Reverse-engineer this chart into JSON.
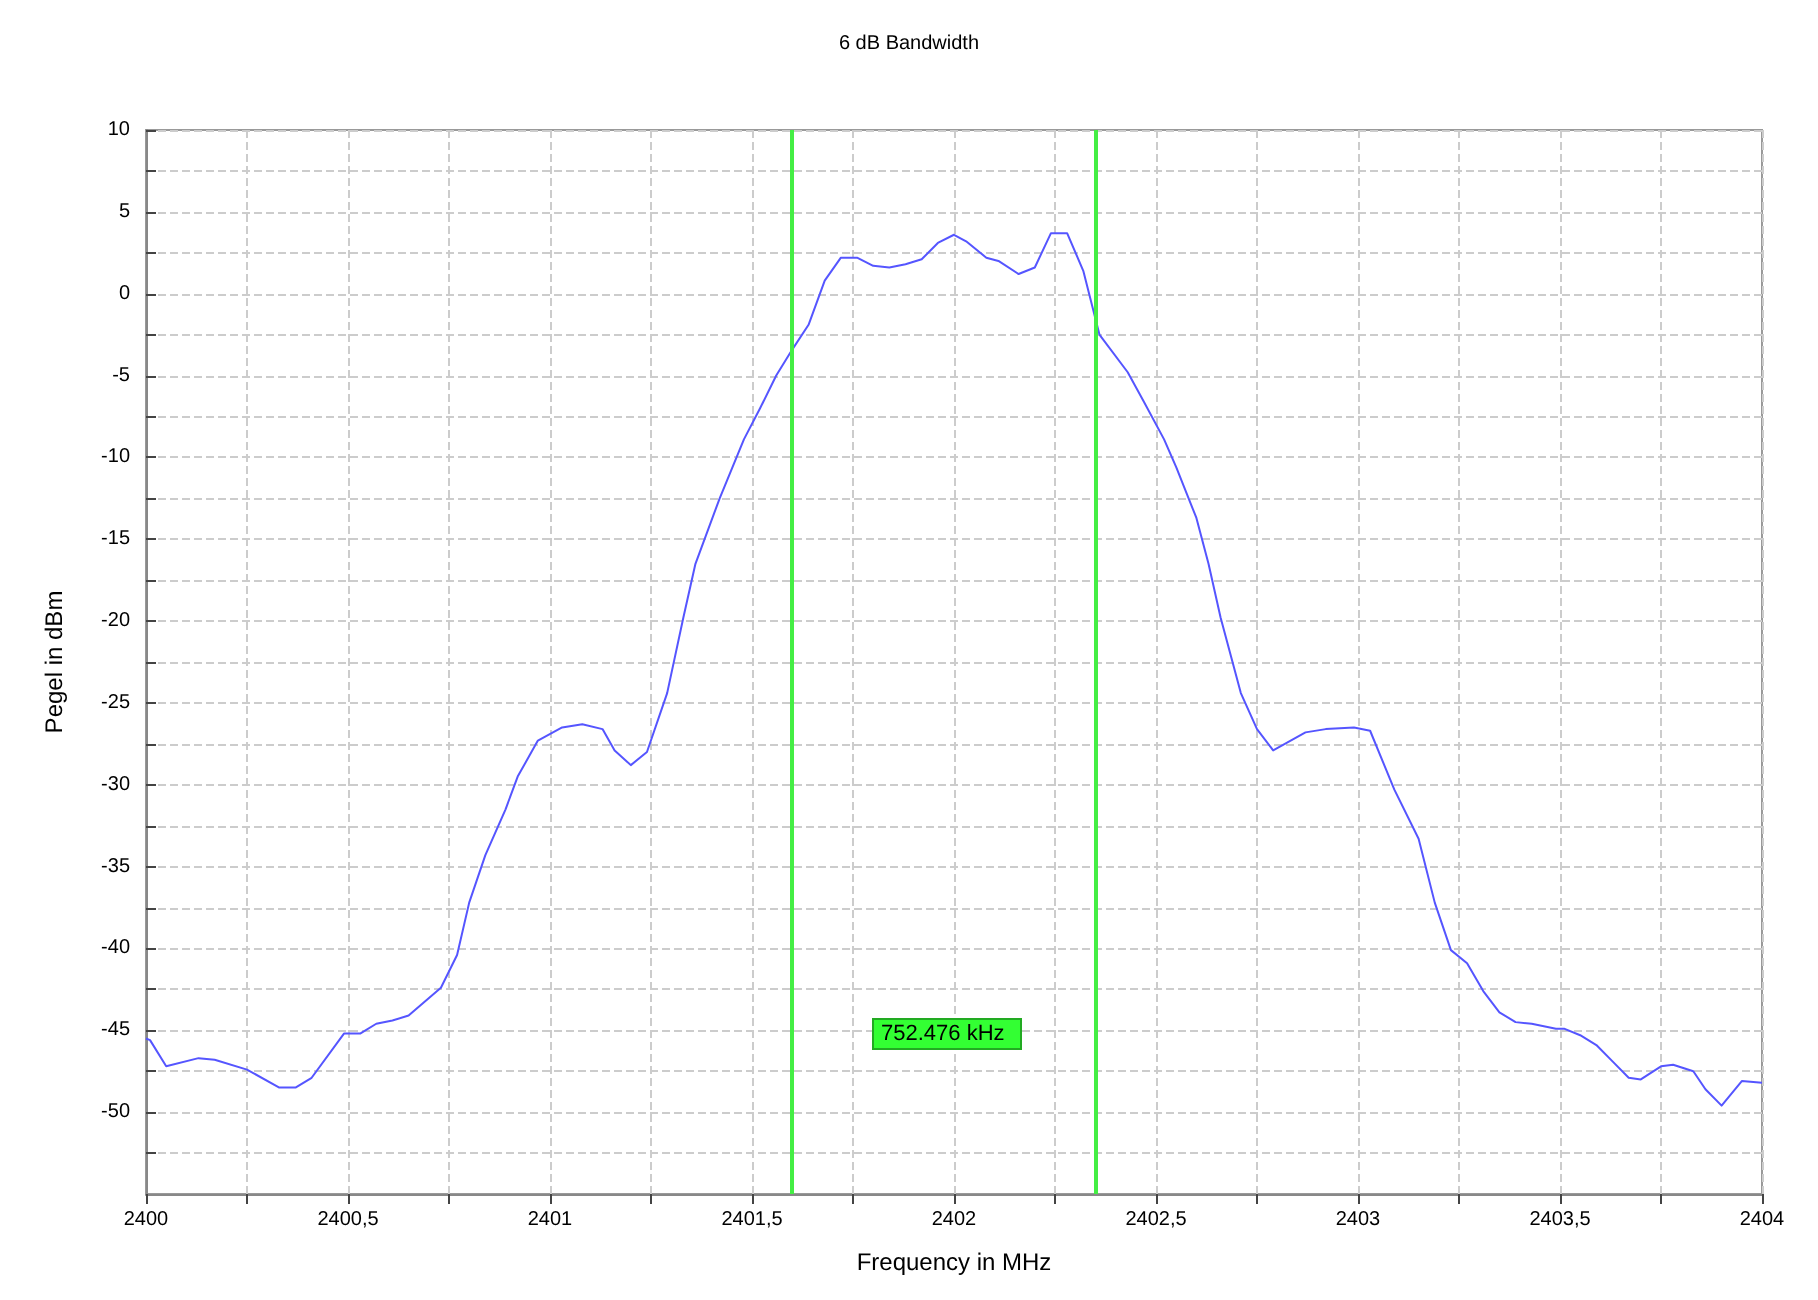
{
  "chart_data": {
    "type": "line",
    "title": "6 dB Bandwidth",
    "xlabel": "Frequency in MHz",
    "ylabel": "Pegel in dBm",
    "x": [
      2400,
      2400.01,
      2400.05,
      2400.13,
      2400.17,
      2400.25,
      2400.33,
      2400.37,
      2400.41,
      2400.49,
      2400.53,
      2400.57,
      2400.61,
      2400.65,
      2400.73,
      2400.77,
      2400.8,
      2400.84,
      2400.89,
      2400.92,
      2400.97,
      2401.03,
      2401.08,
      2401.13,
      2401.16,
      2401.2,
      2401.24,
      2401.29,
      2401.33,
      2401.36,
      2401.42,
      2401.48,
      2401.52,
      2401.56,
      2401.6,
      2401.64,
      2401.68,
      2401.72,
      2401.76,
      2401.8,
      2401.84,
      2401.88,
      2401.92,
      2401.96,
      2402,
      2402.03,
      2402.08,
      2402.11,
      2402.16,
      2402.2,
      2402.24,
      2402.28,
      2402.32,
      2402.36,
      2402.43,
      2402.47,
      2402.52,
      2402.55,
      2402.6,
      2402.63,
      2402.66,
      2402.71,
      2402.75,
      2402.79,
      2402.87,
      2402.92,
      2402.99,
      2403.03,
      2403.09,
      2403.15,
      2403.19,
      2403.23,
      2403.27,
      2403.31,
      2403.35,
      2403.39,
      2403.43,
      2403.49,
      2403.51,
      2403.55,
      2403.59,
      2403.63,
      2403.67,
      2403.7,
      2403.75,
      2403.78,
      2403.83,
      2403.86,
      2403.9,
      2403.95,
      2404
    ],
    "series": [
      {
        "color": "#5555ff",
        "values": [
          -45.5,
          -45.6,
          -47.2,
          -46.7,
          -46.8,
          -47.4,
          -48.5,
          -48.5,
          -47.9,
          -45.2,
          -45.2,
          -44.6,
          -44.4,
          -44.1,
          -42.4,
          -40.4,
          -37.2,
          -34.3,
          -31.5,
          -29.5,
          -27.3,
          -26.5,
          -26.3,
          -26.6,
          -27.9,
          -28.8,
          -28,
          -24.4,
          -19.8,
          -16.5,
          -12.5,
          -8.9,
          -7,
          -5,
          -3.4,
          -1.9,
          0.8,
          2.2,
          2.2,
          1.7,
          1.6,
          1.8,
          2.1,
          3.1,
          3.6,
          3.2,
          2.2,
          2,
          1.2,
          1.6,
          3.7,
          3.7,
          1.4,
          -2.5,
          -4.8,
          -6.6,
          -8.9,
          -10.6,
          -13.7,
          -16.5,
          -19.8,
          -24.4,
          -26.6,
          -27.9,
          -26.8,
          -26.6,
          -26.5,
          -26.7,
          -30.3,
          -33.3,
          -37.2,
          -40.1,
          -40.9,
          -42.6,
          -43.9,
          -44.5,
          -44.6,
          -44.9,
          -44.9,
          -45.3,
          -45.9,
          -46.9,
          -47.9,
          -48,
          -47.2,
          -47.1,
          -47.5,
          -48.6,
          -49.6,
          -48.1,
          -48.2
        ]
      }
    ],
    "xlim": [
      2400,
      2404
    ],
    "xticks": [
      2400,
      {
        "value": 2400.25,
        "label": null
      },
      {
        "value": 2400.5,
        "label": "2400,5"
      },
      {
        "value": 2400.75,
        "label": null
      },
      2401,
      {
        "value": 2401.25,
        "label": null
      },
      {
        "value": 2401.5,
        "label": "2401,5"
      },
      {
        "value": 2401.75,
        "label": null
      },
      2402,
      {
        "value": 2402.25,
        "label": null
      },
      {
        "value": 2402.5,
        "label": "2402,5"
      },
      {
        "value": 2402.75,
        "label": null
      },
      2403,
      {
        "value": 2403.25,
        "label": null
      },
      {
        "value": 2403.5,
        "label": "2403,5"
      },
      {
        "value": 2403.75,
        "label": null
      },
      2404
    ],
    "ylim": [
      -55,
      10
    ],
    "yticks": [
      {
        "value": -52.5,
        "label": null
      },
      -50,
      {
        "value": -47.5,
        "label": null
      },
      -45,
      {
        "value": -42.5,
        "label": null
      },
      -40,
      {
        "value": -37.5,
        "label": null
      },
      -35,
      {
        "value": -32.5,
        "label": null
      },
      -30,
      {
        "value": -27.5,
        "label": null
      },
      -25,
      {
        "value": -22.5,
        "label": null
      },
      -20,
      {
        "value": -17.5,
        "label": null
      },
      -15,
      {
        "value": -12.5,
        "label": null
      },
      -10,
      {
        "value": -7.5,
        "label": null
      },
      -5,
      {
        "value": -2.5,
        "label": null
      },
      0,
      {
        "value": 2.5,
        "label": null
      },
      5,
      {
        "value": 7.5,
        "label": null
      },
      10
    ],
    "grid": true,
    "marker": "none",
    "line_style": "solid",
    "ref_lines": [
      {
        "axis": "x",
        "value": 2401.598,
        "color": "#44ee44"
      },
      {
        "axis": "x",
        "value": 2402.35,
        "color": "#44ee44"
      }
    ],
    "annotations": [
      "752.476 kHz"
    ]
  }
}
